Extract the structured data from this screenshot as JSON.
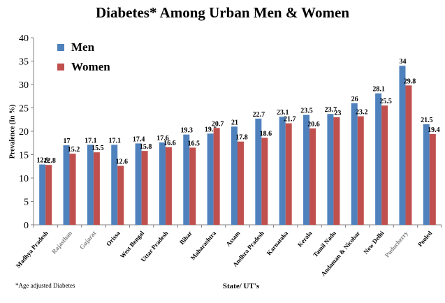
{
  "colors": {
    "men": "#4F81BD",
    "women": "#C0504D",
    "axis": "#808080"
  },
  "footnote": "*Age adjusted Diabetes",
  "chart_data": {
    "type": "bar",
    "title": "Diabetes* Among Urban Men & Women",
    "xlabel": "State/ UT's",
    "ylabel": "Prevalence (In %)",
    "ylim": [
      0,
      40
    ],
    "yticks": [
      0,
      5,
      10,
      15,
      20,
      25,
      30,
      35,
      40
    ],
    "grid": false,
    "legend_position": "top-left",
    "categories": [
      "Madhya Pradesh",
      "Rajasthan",
      "Gujarat",
      "Orissa",
      "West Bengal",
      "Uttar Pradesh",
      "Bihar",
      "Maharashtra",
      "Assam",
      "Andhra Pradesh",
      "Karnataka",
      "Kerala",
      "Tamil Nadu",
      "Andaman & Nicobar",
      "New Delhi",
      "Puducherry",
      "Pooled"
    ],
    "category_label_colors": [
      "#000000",
      "#808080",
      "#808080",
      "#000000",
      "#000000",
      "#000000",
      "#000000",
      "#000000",
      "#000000",
      "#000000",
      "#000000",
      "#000000",
      "#000000",
      "#000000",
      "#000000",
      "#808080",
      "#000000"
    ],
    "series": [
      {
        "name": "Men",
        "values": [
          12.9,
          17,
          17.1,
          17.1,
          17.4,
          17.6,
          19.3,
          19.5,
          21,
          22.7,
          23.1,
          23.5,
          23.7,
          26,
          28.1,
          34,
          21.5
        ]
      },
      {
        "name": "Women",
        "values": [
          12.8,
          15.2,
          15.5,
          12.6,
          15.8,
          16.6,
          16.5,
          20.7,
          17.8,
          18.6,
          21.7,
          20.6,
          23,
          23.2,
          25.5,
          29.8,
          19.4
        ]
      }
    ]
  }
}
